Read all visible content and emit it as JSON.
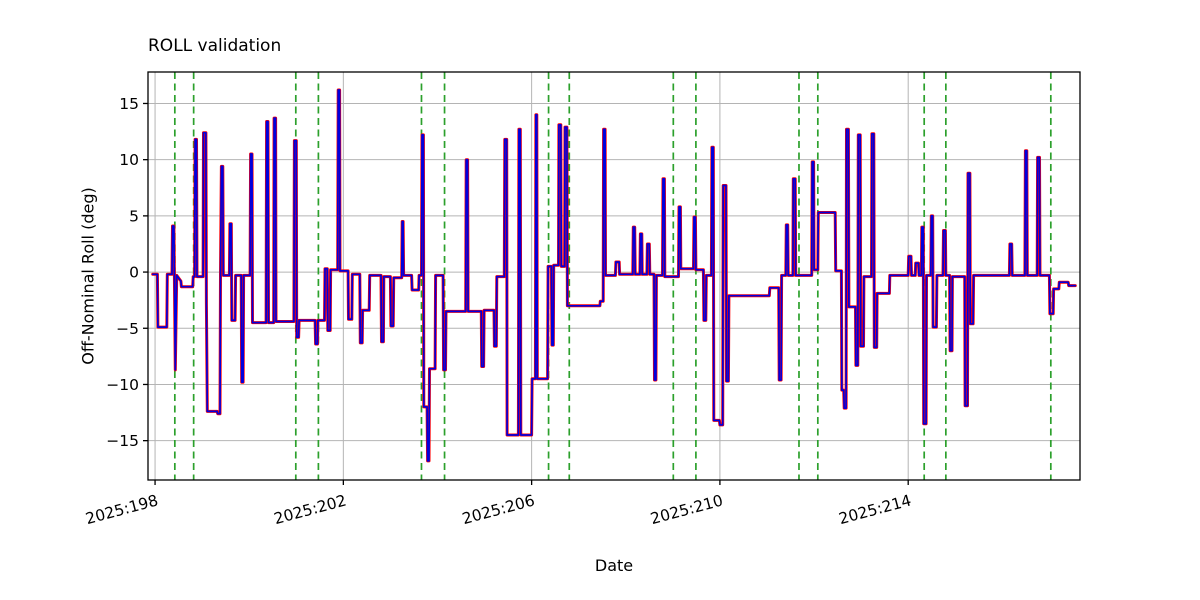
{
  "figure": {
    "background": "#ffffff"
  },
  "chart_data": {
    "type": "line",
    "title": "ROLL validation",
    "xlabel": "Date",
    "ylabel": "Off-Nominal Roll (deg)",
    "xlim": [
      197.85,
      217.65
    ],
    "ylim": [
      -18.5,
      17.8
    ],
    "grid": true,
    "legend_position": "none",
    "x_tick_rotation_deg": 15,
    "colors": {
      "grid": "#b4b4b4",
      "axes": "#000000",
      "background": "#ffffff"
    },
    "x_ticks": [
      {
        "value": 198,
        "label": "2025:198"
      },
      {
        "value": 202,
        "label": "2025:202"
      },
      {
        "value": 206,
        "label": "2025:206"
      },
      {
        "value": 210,
        "label": "2025:210"
      },
      {
        "value": 214,
        "label": "2025:214"
      }
    ],
    "y_ticks": [
      {
        "value": 15,
        "label": "15"
      },
      {
        "value": 10,
        "label": "10"
      },
      {
        "value": 5,
        "label": "5"
      },
      {
        "value": 0,
        "label": "0"
      },
      {
        "value": -5,
        "label": "−5"
      },
      {
        "value": -10,
        "label": "−10"
      },
      {
        "value": -15,
        "label": "−15"
      }
    ],
    "vlines": {
      "name": "event-markers",
      "color": "#2ca02c",
      "style": "dashed",
      "x": [
        198.42,
        198.82,
        200.99,
        201.47,
        203.66,
        204.15,
        206.36,
        206.8,
        209.01,
        209.49,
        211.68,
        212.08,
        214.34,
        214.8,
        217.03
      ]
    },
    "series": [
      {
        "name": "roll-reference-red",
        "color": "#ff0000",
        "line_width": 3.0,
        "points_key": "points"
      },
      {
        "name": "roll-validation-blue",
        "color": "#0000dd",
        "line_width": 1.7,
        "points_key": "points"
      }
    ],
    "points": [
      [
        197.95,
        -0.2
      ],
      [
        198.05,
        -0.2
      ],
      [
        198.06,
        -4.9
      ],
      [
        198.25,
        -4.9
      ],
      [
        198.26,
        -0.2
      ],
      [
        198.36,
        -0.2
      ],
      [
        198.37,
        4.1
      ],
      [
        198.4,
        4.1
      ],
      [
        198.41,
        -0.3
      ],
      [
        198.43,
        -8.7
      ],
      [
        198.46,
        -0.3
      ],
      [
        198.55,
        -0.8
      ],
      [
        198.56,
        -1.3
      ],
      [
        198.8,
        -1.3
      ],
      [
        198.81,
        -0.4
      ],
      [
        198.84,
        -0.4
      ],
      [
        198.85,
        11.8
      ],
      [
        198.88,
        11.8
      ],
      [
        198.89,
        -0.4
      ],
      [
        199.02,
        -0.4
      ],
      [
        199.03,
        12.4
      ],
      [
        199.08,
        12.4
      ],
      [
        199.09,
        -2.8
      ],
      [
        199.11,
        -12.4
      ],
      [
        199.32,
        -12.4
      ],
      [
        199.33,
        -12.6
      ],
      [
        199.38,
        -12.6
      ],
      [
        199.39,
        -0.3
      ],
      [
        199.41,
        9.4
      ],
      [
        199.44,
        9.4
      ],
      [
        199.45,
        -0.3
      ],
      [
        199.58,
        -0.3
      ],
      [
        199.59,
        4.3
      ],
      [
        199.62,
        4.3
      ],
      [
        199.63,
        -4.3
      ],
      [
        199.7,
        -4.3
      ],
      [
        199.71,
        -0.3
      ],
      [
        199.83,
        -0.3
      ],
      [
        199.84,
        -9.8
      ],
      [
        199.87,
        -9.8
      ],
      [
        199.88,
        -0.3
      ],
      [
        200.02,
        -0.3
      ],
      [
        200.03,
        10.5
      ],
      [
        200.06,
        10.5
      ],
      [
        200.07,
        -4.5
      ],
      [
        200.36,
        -4.5
      ],
      [
        200.37,
        13.4
      ],
      [
        200.4,
        13.4
      ],
      [
        200.41,
        -4.5
      ],
      [
        200.52,
        -4.5
      ],
      [
        200.53,
        13.7
      ],
      [
        200.56,
        13.7
      ],
      [
        200.57,
        -4.4
      ],
      [
        200.95,
        -4.4
      ],
      [
        200.96,
        11.7
      ],
      [
        201.0,
        11.7
      ],
      [
        201.01,
        -5.8
      ],
      [
        201.05,
        -5.8
      ],
      [
        201.06,
        -4.3
      ],
      [
        201.4,
        -4.3
      ],
      [
        201.41,
        -6.4
      ],
      [
        201.45,
        -6.4
      ],
      [
        201.46,
        -4.3
      ],
      [
        201.6,
        -4.3
      ],
      [
        201.61,
        0.3
      ],
      [
        201.66,
        0.3
      ],
      [
        201.67,
        -5.2
      ],
      [
        201.72,
        -5.2
      ],
      [
        201.73,
        0.2
      ],
      [
        201.88,
        0.2
      ],
      [
        201.89,
        16.2
      ],
      [
        201.92,
        16.2
      ],
      [
        201.93,
        0.1
      ],
      [
        202.1,
        0.1
      ],
      [
        202.11,
        -4.2
      ],
      [
        202.18,
        -4.2
      ],
      [
        202.19,
        -0.2
      ],
      [
        202.35,
        -0.2
      ],
      [
        202.36,
        -6.3
      ],
      [
        202.4,
        -6.3
      ],
      [
        202.41,
        -3.4
      ],
      [
        202.55,
        -3.4
      ],
      [
        202.56,
        -0.3
      ],
      [
        202.8,
        -0.3
      ],
      [
        202.81,
        -6.2
      ],
      [
        202.85,
        -6.2
      ],
      [
        202.86,
        -0.4
      ],
      [
        203.0,
        -0.4
      ],
      [
        203.01,
        -4.8
      ],
      [
        203.06,
        -4.8
      ],
      [
        203.07,
        -0.5
      ],
      [
        203.24,
        -0.5
      ],
      [
        203.25,
        4.5
      ],
      [
        203.27,
        4.5
      ],
      [
        203.28,
        -0.3
      ],
      [
        203.45,
        -0.3
      ],
      [
        203.46,
        -1.6
      ],
      [
        203.6,
        -1.6
      ],
      [
        203.61,
        -0.3
      ],
      [
        203.66,
        -0.3
      ],
      [
        203.67,
        12.2
      ],
      [
        203.7,
        12.2
      ],
      [
        203.71,
        -12.0
      ],
      [
        203.78,
        -12.0
      ],
      [
        203.79,
        -16.8
      ],
      [
        203.82,
        -16.8
      ],
      [
        203.83,
        -8.6
      ],
      [
        203.95,
        -8.6
      ],
      [
        203.96,
        -0.3
      ],
      [
        204.12,
        -0.3
      ],
      [
        204.13,
        -8.7
      ],
      [
        204.17,
        -8.7
      ],
      [
        204.18,
        -3.5
      ],
      [
        204.6,
        -3.5
      ],
      [
        204.61,
        10.0
      ],
      [
        204.64,
        10.0
      ],
      [
        204.65,
        -3.5
      ],
      [
        204.93,
        -3.5
      ],
      [
        204.94,
        -8.4
      ],
      [
        204.98,
        -8.4
      ],
      [
        204.99,
        -3.4
      ],
      [
        205.2,
        -3.4
      ],
      [
        205.21,
        -6.6
      ],
      [
        205.25,
        -6.6
      ],
      [
        205.26,
        -0.4
      ],
      [
        205.42,
        -0.4
      ],
      [
        205.43,
        11.8
      ],
      [
        205.47,
        11.8
      ],
      [
        205.48,
        -14.5
      ],
      [
        205.72,
        -14.5
      ],
      [
        205.73,
        12.7
      ],
      [
        205.76,
        12.7
      ],
      [
        205.77,
        -14.5
      ],
      [
        206.0,
        -14.5
      ],
      [
        206.01,
        -9.5
      ],
      [
        206.08,
        -9.5
      ],
      [
        206.09,
        14.0
      ],
      [
        206.11,
        14.0
      ],
      [
        206.12,
        -9.5
      ],
      [
        206.34,
        -9.5
      ],
      [
        206.35,
        0.5
      ],
      [
        206.42,
        0.5
      ],
      [
        206.43,
        -6.5
      ],
      [
        206.46,
        -6.5
      ],
      [
        206.47,
        0.6
      ],
      [
        206.57,
        0.6
      ],
      [
        206.58,
        13.1
      ],
      [
        206.62,
        13.1
      ],
      [
        206.63,
        0.5
      ],
      [
        206.7,
        0.5
      ],
      [
        206.71,
        12.9
      ],
      [
        206.75,
        12.9
      ],
      [
        206.76,
        -3.0
      ],
      [
        207.45,
        -3.0
      ],
      [
        207.46,
        -2.6
      ],
      [
        207.52,
        -2.6
      ],
      [
        207.53,
        12.7
      ],
      [
        207.56,
        12.7
      ],
      [
        207.57,
        -0.3
      ],
      [
        207.78,
        -0.3
      ],
      [
        207.79,
        0.9
      ],
      [
        207.86,
        0.9
      ],
      [
        207.87,
        -0.2
      ],
      [
        208.15,
        -0.2
      ],
      [
        208.16,
        4.0
      ],
      [
        208.19,
        4.0
      ],
      [
        208.2,
        -0.2
      ],
      [
        208.3,
        -0.2
      ],
      [
        208.31,
        3.4
      ],
      [
        208.34,
        3.4
      ],
      [
        208.35,
        -0.2
      ],
      [
        208.45,
        -0.2
      ],
      [
        208.46,
        2.5
      ],
      [
        208.5,
        2.5
      ],
      [
        208.51,
        -0.2
      ],
      [
        208.6,
        -0.2
      ],
      [
        208.61,
        -9.6
      ],
      [
        208.64,
        -9.6
      ],
      [
        208.65,
        -0.3
      ],
      [
        208.78,
        -0.3
      ],
      [
        208.79,
        8.3
      ],
      [
        208.82,
        8.3
      ],
      [
        208.83,
        -0.4
      ],
      [
        209.12,
        -0.4
      ],
      [
        209.13,
        5.8
      ],
      [
        209.16,
        5.8
      ],
      [
        209.17,
        0.3
      ],
      [
        209.44,
        0.3
      ],
      [
        209.45,
        4.9
      ],
      [
        209.48,
        4.9
      ],
      [
        209.49,
        0.2
      ],
      [
        209.65,
        0.2
      ],
      [
        209.66,
        -4.3
      ],
      [
        209.7,
        -4.3
      ],
      [
        209.71,
        -0.3
      ],
      [
        209.82,
        -0.3
      ],
      [
        209.83,
        11.1
      ],
      [
        209.86,
        11.1
      ],
      [
        209.87,
        -13.2
      ],
      [
        209.99,
        -13.2
      ],
      [
        210.0,
        -13.6
      ],
      [
        210.06,
        -13.6
      ],
      [
        210.07,
        7.7
      ],
      [
        210.13,
        7.7
      ],
      [
        210.14,
        -9.7
      ],
      [
        210.18,
        -9.7
      ],
      [
        210.19,
        -2.1
      ],
      [
        211.05,
        -2.1
      ],
      [
        211.06,
        -1.4
      ],
      [
        211.25,
        -1.4
      ],
      [
        211.26,
        -9.6
      ],
      [
        211.3,
        -9.6
      ],
      [
        211.31,
        -0.3
      ],
      [
        211.4,
        -0.3
      ],
      [
        211.41,
        4.2
      ],
      [
        211.44,
        4.2
      ],
      [
        211.45,
        -0.3
      ],
      [
        211.55,
        -0.3
      ],
      [
        211.56,
        8.3
      ],
      [
        211.6,
        8.3
      ],
      [
        211.61,
        -0.3
      ],
      [
        211.95,
        -0.3
      ],
      [
        211.96,
        9.8
      ],
      [
        211.99,
        9.8
      ],
      [
        212.0,
        0.2
      ],
      [
        212.08,
        0.2
      ],
      [
        212.09,
        5.3
      ],
      [
        212.45,
        5.3
      ],
      [
        212.46,
        0.1
      ],
      [
        212.58,
        0.1
      ],
      [
        212.59,
        -10.5
      ],
      [
        212.63,
        -10.5
      ],
      [
        212.64,
        -12.1
      ],
      [
        212.68,
        -12.1
      ],
      [
        212.69,
        12.7
      ],
      [
        212.73,
        12.7
      ],
      [
        212.74,
        -3.1
      ],
      [
        212.88,
        -3.1
      ],
      [
        212.89,
        -8.3
      ],
      [
        212.93,
        -8.3
      ],
      [
        212.94,
        12.2
      ],
      [
        212.98,
        12.2
      ],
      [
        212.99,
        -6.6
      ],
      [
        213.05,
        -6.6
      ],
      [
        213.06,
        -0.4
      ],
      [
        213.22,
        -0.4
      ],
      [
        213.23,
        12.3
      ],
      [
        213.27,
        12.3
      ],
      [
        213.28,
        -6.7
      ],
      [
        213.33,
        -6.7
      ],
      [
        213.34,
        -1.9
      ],
      [
        213.6,
        -1.9
      ],
      [
        213.61,
        -0.3
      ],
      [
        214.0,
        -0.3
      ],
      [
        214.01,
        1.4
      ],
      [
        214.06,
        1.4
      ],
      [
        214.07,
        -0.3
      ],
      [
        214.15,
        -0.3
      ],
      [
        214.16,
        0.8
      ],
      [
        214.22,
        0.8
      ],
      [
        214.23,
        -0.3
      ],
      [
        214.28,
        -0.3
      ],
      [
        214.29,
        4.0
      ],
      [
        214.32,
        4.0
      ],
      [
        214.33,
        -13.5
      ],
      [
        214.38,
        -13.5
      ],
      [
        214.39,
        -0.3
      ],
      [
        214.48,
        -0.3
      ],
      [
        214.49,
        5.0
      ],
      [
        214.52,
        5.0
      ],
      [
        214.53,
        -4.9
      ],
      [
        214.6,
        -4.9
      ],
      [
        214.61,
        -0.3
      ],
      [
        214.74,
        -0.3
      ],
      [
        214.75,
        3.7
      ],
      [
        214.79,
        3.7
      ],
      [
        214.8,
        -0.3
      ],
      [
        214.88,
        -0.3
      ],
      [
        214.89,
        -7.0
      ],
      [
        214.93,
        -7.0
      ],
      [
        214.94,
        -0.4
      ],
      [
        215.2,
        -0.4
      ],
      [
        215.21,
        -11.9
      ],
      [
        215.26,
        -11.9
      ],
      [
        215.27,
        8.8
      ],
      [
        215.31,
        8.8
      ],
      [
        215.32,
        -4.6
      ],
      [
        215.38,
        -4.6
      ],
      [
        215.39,
        -0.3
      ],
      [
        216.15,
        -0.3
      ],
      [
        216.16,
        2.5
      ],
      [
        216.2,
        2.5
      ],
      [
        216.21,
        -0.3
      ],
      [
        216.48,
        -0.3
      ],
      [
        216.49,
        10.8
      ],
      [
        216.52,
        10.8
      ],
      [
        216.53,
        -0.3
      ],
      [
        216.74,
        -0.3
      ],
      [
        216.75,
        10.2
      ],
      [
        216.79,
        10.2
      ],
      [
        216.8,
        -0.3
      ],
      [
        217.0,
        -0.3
      ],
      [
        217.01,
        -3.7
      ],
      [
        217.08,
        -3.7
      ],
      [
        217.09,
        -1.5
      ],
      [
        217.2,
        -1.5
      ],
      [
        217.21,
        -0.9
      ],
      [
        217.4,
        -0.9
      ],
      [
        217.41,
        -1.2
      ],
      [
        217.55,
        -1.2
      ]
    ]
  }
}
